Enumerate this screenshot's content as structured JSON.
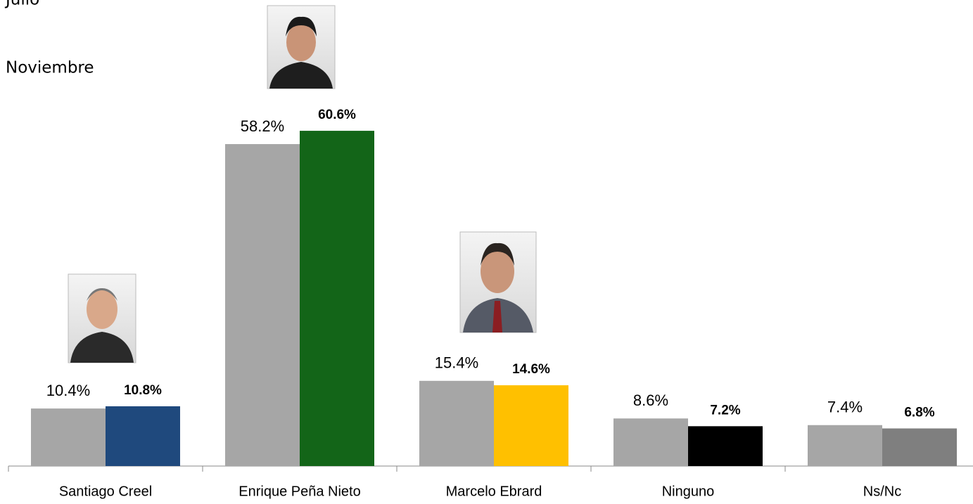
{
  "chart_data": {
    "type": "bar",
    "categories": [
      "Santiago Creel",
      "Enrique Peña Nieto",
      "Marcelo Ebrard",
      "Ninguno",
      "Ns/Nc"
    ],
    "series": [
      {
        "name": "Julio",
        "color": "#a6a6a6",
        "values": [
          10.4,
          58.2,
          15.4,
          8.6,
          7.4
        ],
        "value_labels": [
          "10.4%",
          "58.2%",
          "15.4%",
          "8.6%",
          "7.4%"
        ]
      },
      {
        "name": "Noviembre",
        "colors": [
          "#1f497d",
          "#136518",
          "#ffc000",
          "#000000",
          "#7f7f7f"
        ],
        "values": [
          10.8,
          60.6,
          14.6,
          7.2,
          6.8
        ],
        "value_labels": [
          "10.8%",
          "60.6%",
          "14.6%",
          "7.2%",
          "6.8%"
        ]
      }
    ]
  }
}
